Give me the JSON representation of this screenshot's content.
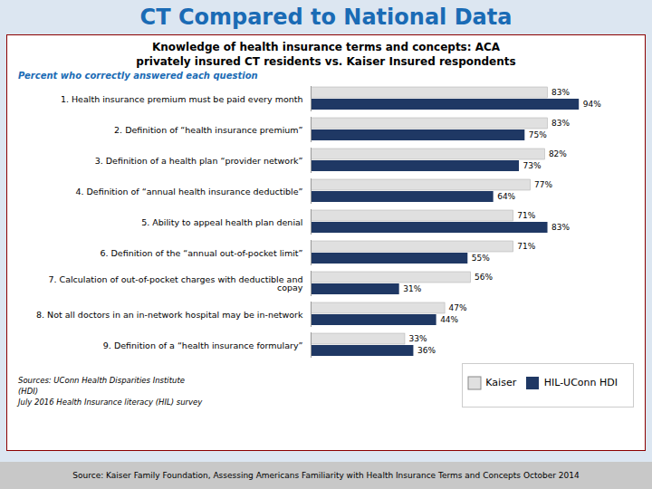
{
  "chart_data": {
    "type": "bar",
    "orientation": "horizontal",
    "title": "CT Compared to National Data",
    "subtitle": [
      "Knowledge of health insurance terms and concepts: ACA",
      "privately insured CT residents vs. Kaiser Insured respondents"
    ],
    "annotations": [
      "Percent who correctly answered each question",
      "Sources:  UConn Health Disparities Institute\n(HDI)\nJuly 2016 Health Insurance literacy (HIL) survey",
      "Source: Kaiser Family Foundation, Assessing Americans Familiarity with Health Insurance Terms and Concepts October 2014"
    ],
    "categories": [
      "1. Health insurance premium must be paid every month",
      "2. Definition of “health insurance premium”",
      "3. Definition of a health plan “provider network”",
      "4. Definition of “annual health insurance deductible”",
      "5. Ability to appeal health plan denial",
      "6. Definition of the “annual out-of-pocket limit”",
      "7. Calculation of out-of-pocket charges with deductible and\ncopay",
      "8. Not all doctors in an in-network hospital may be in-network",
      "9. Definition of a “health insurance formulary”"
    ],
    "series": [
      {
        "name": "Kaiser",
        "color": "#e0e0e0",
        "values": [
          83,
          83,
          82,
          77,
          71,
          71,
          56,
          47,
          33
        ],
        "value_labels": [
          "83%",
          "83%",
          "82%",
          "77%",
          "71%",
          "71%",
          "56%",
          "47%",
          "33%"
        ]
      },
      {
        "name": "HIL-UConn HDI",
        "color": "#1f3864",
        "values": [
          94,
          75,
          73,
          64,
          83,
          55,
          31,
          44,
          36
        ],
        "value_labels": [
          "94%",
          "75%",
          "73%",
          "64%",
          "83%",
          "55%",
          "31%",
          "44%",
          "36%"
        ]
      }
    ],
    "xlim": [
      0,
      106
    ],
    "data_labels": true,
    "tick_labels": "y",
    "grid": false,
    "legend": "lower right"
  }
}
